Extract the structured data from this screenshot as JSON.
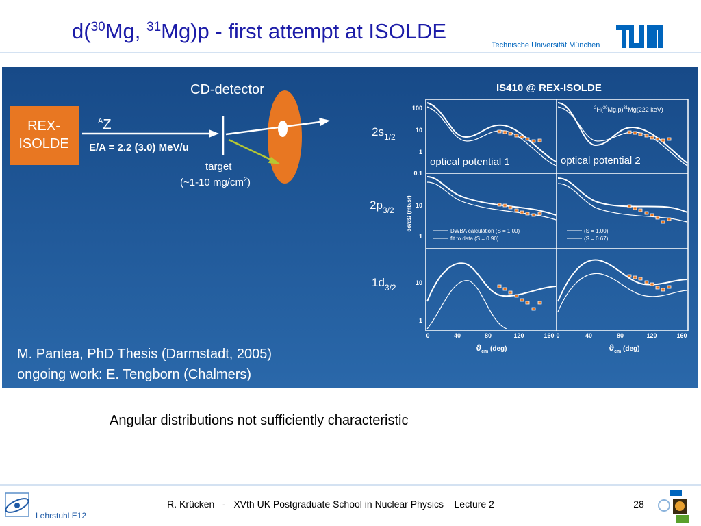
{
  "header": {
    "title_parts": [
      "d(",
      "30",
      "Mg, ",
      "31",
      "Mg)p - first attempt at ISOLDE"
    ],
    "institution": "Technische Universität München"
  },
  "setup": {
    "source": [
      "REX-",
      "ISOLDE"
    ],
    "detector": "CD-detector",
    "beam_parts": [
      "A",
      "Z"
    ],
    "energy": "E/A = 2.2 (3.0) MeV/u",
    "target": "target",
    "thickness_parts": [
      "(~1-10 mg/cm",
      "2",
      ")"
    ]
  },
  "plot": {
    "title": "IS410 @ REX-ISOLDE",
    "reaction_parts": [
      "2",
      "H(",
      "30",
      "Mg,p)",
      "31",
      "Mg(222 keV)"
    ],
    "states": [
      [
        "2s",
        "1/2"
      ],
      [
        "2p",
        "3/2"
      ],
      [
        "1d",
        "3/2"
      ]
    ],
    "panel_labels": [
      "optical potential 1",
      "optical potential 2"
    ],
    "y_ticks_row1": [
      "100",
      "10",
      "1",
      "0.1"
    ],
    "y_ticks_row2": [
      "10",
      "1"
    ],
    "y_ticks_row3": [
      "10",
      "1"
    ],
    "x_ticks": [
      "0",
      "40",
      "80",
      "120",
      "160"
    ],
    "x_label_parts": [
      "ϑ",
      "cm",
      " (deg)"
    ],
    "y_label": "dσ/dΩ (mb/sr)",
    "legend_left": [
      "DWBA calculation (S = 1.00)",
      "fit to data (S = 0.90)"
    ],
    "legend_right": [
      "(S = 1.00)",
      "(S = 0.67)"
    ]
  },
  "credits": [
    "M. Pantea, PhD Thesis (Darmstadt, 2005)",
    "ongoing work: E. Tengborn (Chalmers)"
  ],
  "caption": "Angular distributions not sufficiently characteristic",
  "footer": {
    "text": "R. Krücken   -   XVth UK Postgraduate School in Nuclear Physics – Lecture 2",
    "page": "28",
    "chair": "Lehrstuhl E12"
  }
}
